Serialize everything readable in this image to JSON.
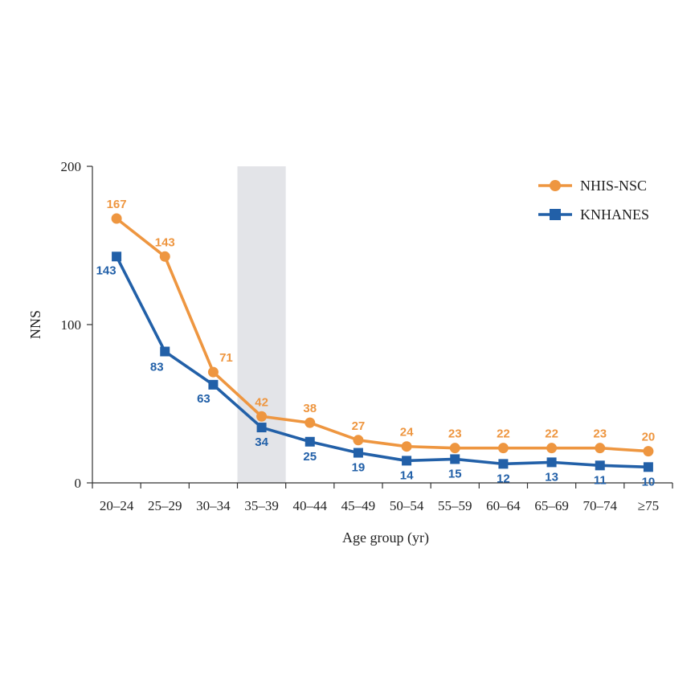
{
  "chart_data": {
    "type": "line",
    "categories": [
      "20–24",
      "25–29",
      "30–34",
      "35–39",
      "40–44",
      "45–49",
      "50–54",
      "55–59",
      "60–64",
      "65–69",
      "70–74",
      "≥75"
    ],
    "series": [
      {
        "name": "NHIS-NSC",
        "values": [
          167,
          143,
          71,
          42,
          38,
          27,
          24,
          23,
          22,
          22,
          23,
          20
        ],
        "color": "#EE9640",
        "marker": "circle"
      },
      {
        "name": "KNHANES",
        "values": [
          143,
          83,
          63,
          34,
          25,
          19,
          14,
          15,
          12,
          13,
          11,
          10
        ],
        "color": "#2260A8",
        "marker": "square"
      }
    ],
    "plot_values": {
      "NHIS-NSC": [
        167,
        143,
        70,
        42,
        38,
        27,
        23,
        22,
        22,
        22,
        22,
        20
      ],
      "KNHANES": [
        143,
        83,
        62,
        35,
        26,
        19,
        14,
        15,
        12,
        13,
        11,
        10
      ]
    },
    "xlabel": "Age group (yr)",
    "ylabel": "NNS",
    "ylim": [
      0,
      200
    ],
    "yticks": [
      0,
      100,
      200
    ],
    "highlight_category": "35–39",
    "highlight_color": "#E3E4E8",
    "grid": false,
    "legend_position": "top-right"
  }
}
